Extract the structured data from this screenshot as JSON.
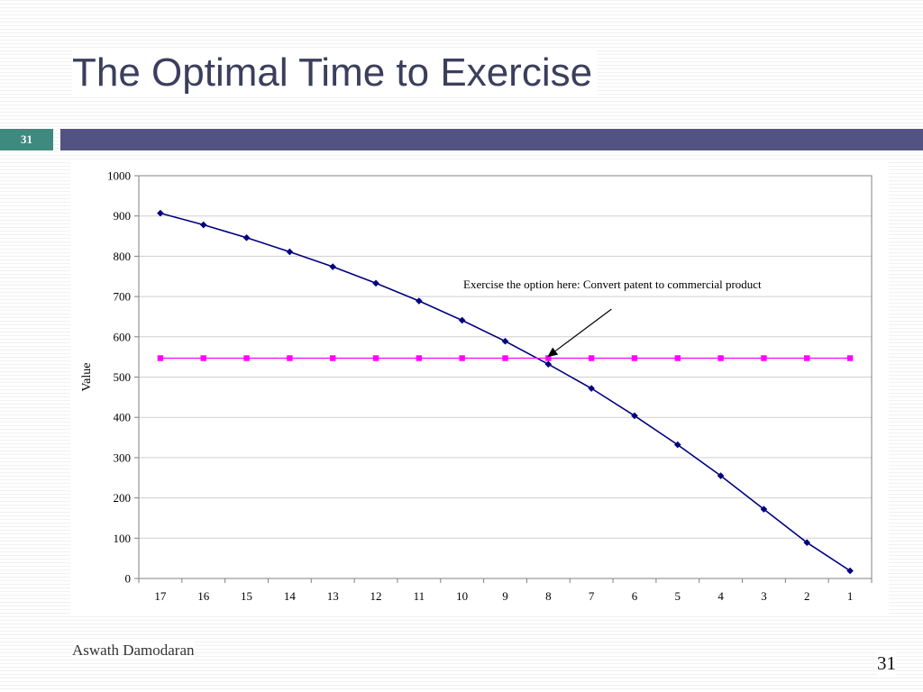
{
  "slide": {
    "title": "The Optimal Time to Exercise",
    "number_badge": "31",
    "author": "Aswath Damodaran",
    "page_number": "31"
  },
  "colors": {
    "title_text": "#3b3f5c",
    "number_box": "#3f8a7e",
    "title_bar": "#535383",
    "series_value": "#000080",
    "series_flat": "#ff00ff",
    "grid": "#cfcfcf"
  },
  "chart_data": {
    "type": "line",
    "title": "",
    "xlabel": "",
    "ylabel": "Value",
    "categories": [
      "17",
      "16",
      "15",
      "14",
      "13",
      "12",
      "11",
      "10",
      "9",
      "8",
      "7",
      "6",
      "5",
      "4",
      "3",
      "2",
      "1"
    ],
    "ylim": [
      0,
      1000
    ],
    "yticks": [
      "0",
      "100",
      "200",
      "300",
      "400",
      "500",
      "600",
      "700",
      "800",
      "900",
      "1000"
    ],
    "grid": true,
    "legend": "none",
    "series": [
      {
        "marker": "diamond",
        "values": [
          907,
          878,
          846,
          811,
          774,
          733,
          689,
          641,
          589,
          532,
          472,
          404,
          332,
          255,
          172,
          89,
          19
        ]
      },
      {
        "marker": "square",
        "values": [
          547,
          547,
          547,
          547,
          547,
          547,
          547,
          547,
          547,
          547,
          547,
          547,
          547,
          547,
          547,
          547,
          547
        ]
      }
    ],
    "annotation": {
      "text": "Exercise the option here: Convert patent to commercial product",
      "arrow_target_category": "8",
      "arrow_target_value": 550
    }
  }
}
